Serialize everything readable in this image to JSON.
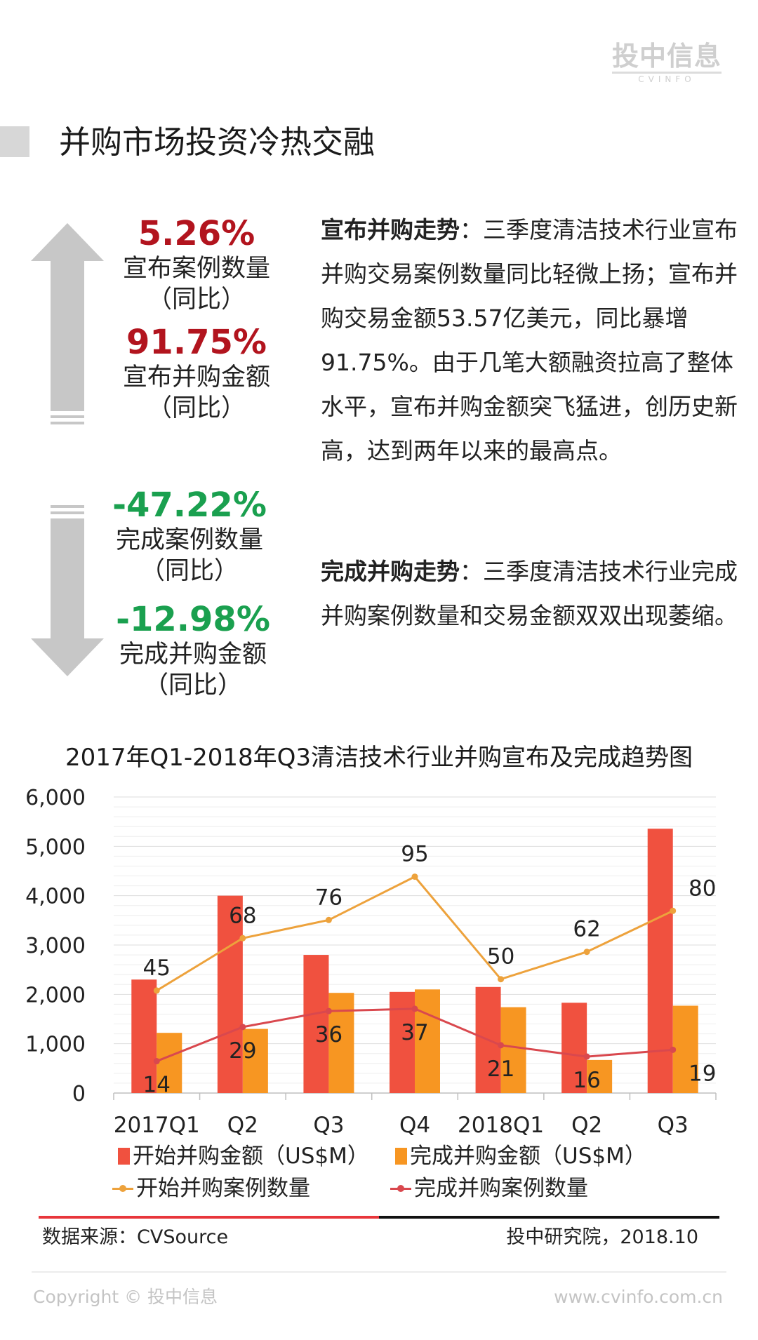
{
  "logo": {
    "main": "投中信息",
    "sub": "CVINFO"
  },
  "page_title": "并购市场投资冷热交融",
  "stats_up": [
    {
      "pct": "5.26%",
      "label": "宣布案例数量",
      "sub": "（同比）"
    },
    {
      "pct": "91.75%",
      "label": "宣布并购金额",
      "sub": "（同比）"
    }
  ],
  "stats_down": [
    {
      "pct": "-47.22%",
      "label": "完成案例数量",
      "sub": "（同比）"
    },
    {
      "pct": "-12.98%",
      "label": "完成并购金额",
      "sub": "（同比）"
    }
  ],
  "para1": {
    "heading": "宣布并购走势",
    "text": "：三季度清洁技术行业宣布并购交易案例数量同比轻微上扬；宣布并购交易金额53.57亿美元，同比暴增91.75%。由于几笔大额融资拉高了整体水平，宣布并购金额突飞猛进，创历史新高，达到两年以来的最高点。"
  },
  "para2": {
    "heading": "完成并购走势",
    "text": "：三季度清洁技术行业完成并购案例数量和交易金额双双出现萎缩。"
  },
  "colors": {
    "announce_bar": "#f0513f",
    "complete_bar": "#f79622",
    "announce_line": "#eda23c",
    "complete_line": "#d9484e",
    "arrow": "#c7c7c7"
  },
  "chart_data": {
    "type": "bar",
    "title": "2017年Q1-2018年Q3清洁技术行业并购宣布及完成趋势图",
    "categories": [
      "2017Q1",
      "Q2",
      "Q3",
      "Q4",
      "2018Q1",
      "Q2",
      "Q3"
    ],
    "y_ticks": [
      "6,000",
      "5,000",
      "4,000",
      "3,000",
      "2,000",
      "1,000",
      "0"
    ],
    "ylim": [
      0,
      6000
    ],
    "series": [
      {
        "name": "开始并购金额（US$M）",
        "kind": "bar",
        "values": [
          2300,
          4000,
          2800,
          2050,
          2150,
          1830,
          5357
        ]
      },
      {
        "name": "完成并购金额（US$M）",
        "kind": "bar",
        "values": [
          1220,
          1300,
          2030,
          2100,
          1740,
          670,
          1770
        ]
      },
      {
        "name": "开始并购案例数量",
        "kind": "line",
        "values": [
          45,
          68,
          76,
          95,
          50,
          62,
          80
        ],
        "labels": [
          "45",
          "68",
          "76",
          "95",
          "50",
          "62",
          "80"
        ]
      },
      {
        "name": "完成并购案例数量",
        "kind": "line",
        "values": [
          14,
          29,
          36,
          37,
          21,
          16,
          19
        ],
        "labels": [
          "14",
          "29",
          "36",
          "37",
          "21",
          "16",
          "19"
        ]
      }
    ]
  },
  "source": {
    "left": "数据来源：CVSource",
    "right": "投中研究院，2018.10"
  },
  "footer": {
    "copyright": "Copyright © 投中信息",
    "url": "www.cvinfo.com.cn"
  }
}
